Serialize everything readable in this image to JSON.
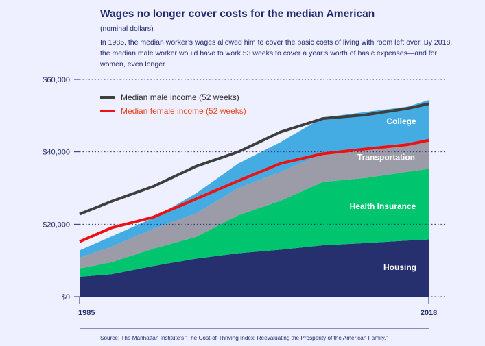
{
  "header": {
    "title": "Wages no longer cover costs for the median American",
    "subtitle": "(nominal dollars)",
    "description": "In 1985, the median worker’s wages allowed him to cover the basic costs of living with room left over. By 2018, the median male worker would have to work 53 weeks to cover a year’s worth of basic expenses—and for women, even longer."
  },
  "source": "Source: The Manhattan Institute’s “The Cost-of-Thriving Index: Reevaluating the Prosperity of the American Family.”",
  "colors": {
    "housing": "#27306f",
    "health": "#00c46e",
    "transportation": "#9b9ca8",
    "college": "#45abe3",
    "male_line": "#3f3f3f",
    "female_line": "#ee1111",
    "female_text": "#e8431c",
    "background": "#eef0ff"
  },
  "chart_data": {
    "type": "area",
    "x_labels": [
      "1985",
      "2018"
    ],
    "x": [
      1985,
      1988,
      1992,
      1996,
      2000,
      2004,
      2008,
      2012,
      2016,
      2018
    ],
    "ylim": [
      0,
      60000
    ],
    "y_ticks": [
      {
        "value": 0,
        "label": "$0"
      },
      {
        "value": 20000,
        "label": "$20,000"
      },
      {
        "value": 40000,
        "label": "$40,000"
      },
      {
        "value": 60000,
        "label": "$60,000"
      }
    ],
    "stacked_series": [
      {
        "key": "housing",
        "name": "Housing",
        "values": [
          5500,
          6200,
          8500,
          10500,
          12000,
          13000,
          14200,
          14800,
          15500,
          15800
        ]
      },
      {
        "key": "health",
        "name": "Health Insurance",
        "values": [
          2300,
          3300,
          4800,
          6000,
          10500,
          13500,
          17500,
          18000,
          19000,
          19500
        ]
      },
      {
        "key": "transportation",
        "name": "Transportation",
        "values": [
          3000,
          4300,
          5500,
          6500,
          7500,
          8000,
          7800,
          8200,
          8000,
          7800
        ]
      },
      {
        "key": "college",
        "name": "College",
        "values": [
          2000,
          2800,
          3000,
          5500,
          6800,
          8200,
          10000,
          10000,
          10000,
          11200
        ]
      }
    ],
    "line_series": [
      {
        "key": "male",
        "name": "Median male income",
        "suffix": " (52 weeks)",
        "values": [
          22800,
          26300,
          30500,
          36000,
          40000,
          45500,
          49200,
          50200,
          52000,
          53300
        ]
      },
      {
        "key": "female",
        "name": "Median female income",
        "suffix": " (52 weeks)",
        "values": [
          15200,
          19000,
          22000,
          27000,
          32000,
          36800,
          39500,
          40800,
          42000,
          43200
        ]
      }
    ],
    "grid": "dotted horizontal"
  }
}
